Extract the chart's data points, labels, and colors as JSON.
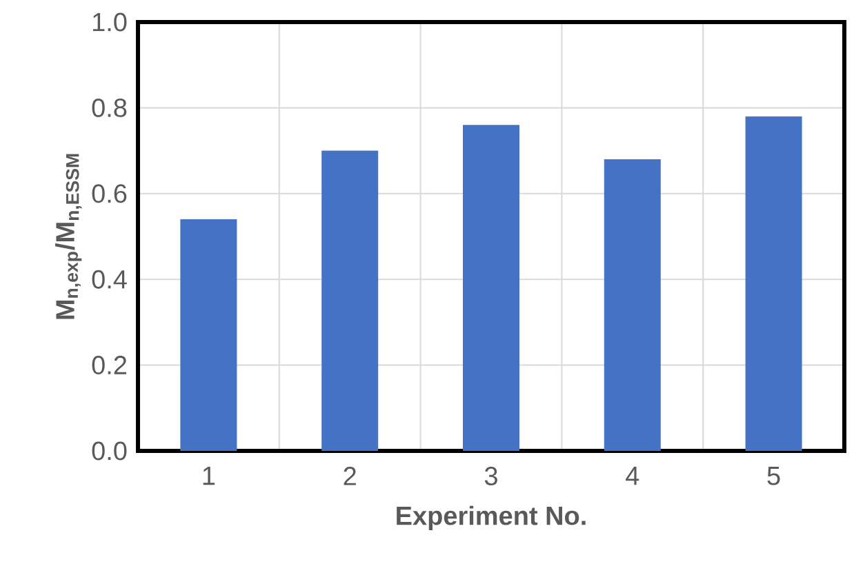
{
  "chart_data": {
    "type": "bar",
    "xlabel": "Experiment No.",
    "ylabel": "M$_{n,exp}$/M$_{n,ESSM}$",
    "categories": [
      "1",
      "2",
      "3",
      "4",
      "5"
    ],
    "values": [
      0.54,
      0.7,
      0.76,
      0.68,
      0.78
    ],
    "color": "#4472c4",
    "ylim": [
      0,
      1.0
    ],
    "yticks": [
      {
        "value": 0,
        "label": "0.0"
      },
      {
        "value": 0.2,
        "label": "0.2"
      },
      {
        "value": 0.4,
        "label": "0.4"
      },
      {
        "value": 0.6,
        "label": "0.6"
      },
      {
        "value": 0.8,
        "label": "0.8"
      },
      {
        "value": 1.0,
        "label": "1.0"
      }
    ],
    "grid": true
  }
}
